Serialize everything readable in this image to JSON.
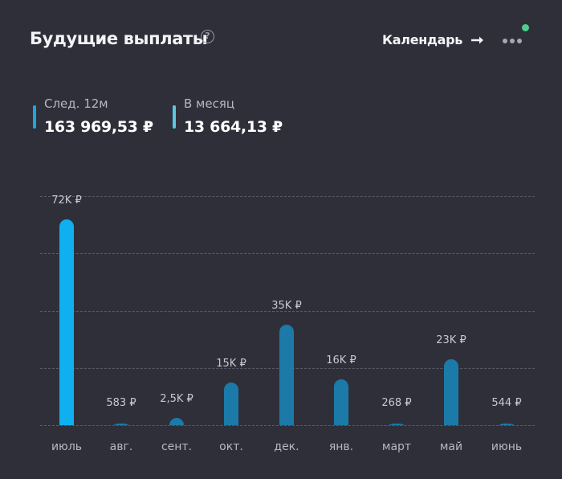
{
  "header": {
    "title": "Будущие выплаты",
    "help_icon": "question-circle-icon",
    "calendar_link": "Календарь",
    "arrow_icon": "arrow-right-icon",
    "more_icon": "ellipsis-icon",
    "status_dot_color": "#4fcf8f"
  },
  "stats": [
    {
      "label": "След. 12м",
      "value": "163 969,53 ₽",
      "color": "#1aa6e0"
    },
    {
      "label": "В месяц",
      "value": "13 664,13 ₽",
      "color": "#5bc6e0"
    }
  ],
  "colors": {
    "background": "#2f2f3a",
    "highlight_bar": "#0fb0f0",
    "bar": "#1b7aa8",
    "gridline": "#5a5a68"
  },
  "chart_data": {
    "type": "bar",
    "title": "Будущие выплаты",
    "xlabel": "",
    "ylabel": "",
    "categories": [
      "июль",
      "авг.",
      "сент.",
      "окт.",
      "дек.",
      "янв.",
      "март",
      "май",
      "июнь"
    ],
    "values": [
      72000,
      583,
      2500,
      15000,
      35000,
      16000,
      268,
      23000,
      544
    ],
    "value_labels": [
      "72K ₽",
      "583 ₽",
      "2,5K ₽",
      "15K ₽",
      "35K ₽",
      "16K ₽",
      "268 ₽",
      "23K ₽",
      "544 ₽"
    ],
    "highlighted_index": 0,
    "ylim": [
      0,
      80000
    ],
    "gridlines": 5,
    "grid": true,
    "legend": null,
    "currency": "₽"
  }
}
